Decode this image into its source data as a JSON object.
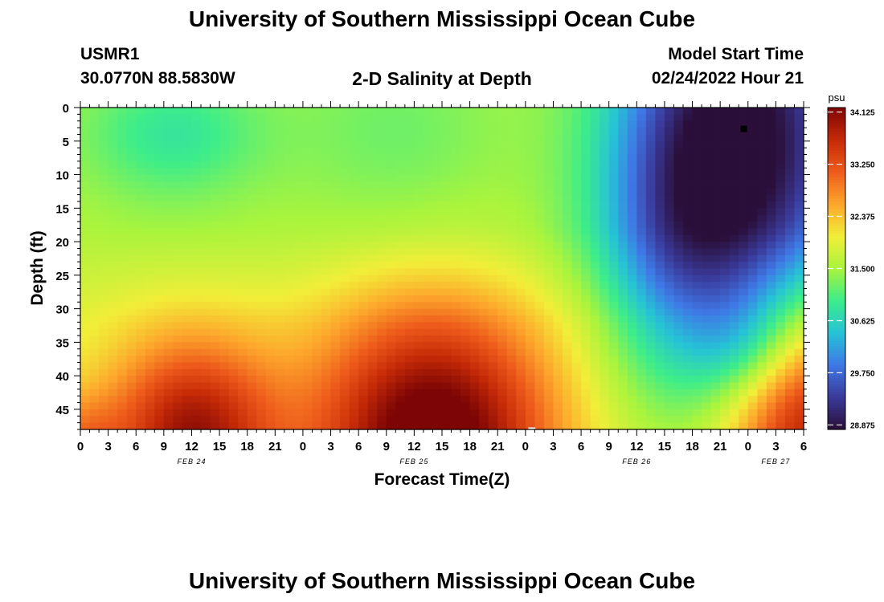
{
  "header": {
    "title": "University of Southern Mississippi Ocean Cube",
    "station": "USMR1",
    "coords": "30.0770N  88.5830W",
    "subtitle": "2-D Salinity at Depth",
    "model_start_label": "Model Start Time",
    "model_start_value": "02/24/2022 Hour 21"
  },
  "footer": {
    "title": "University of Southern Mississippi Ocean Cube"
  },
  "chart_data": {
    "type": "heatmap",
    "title": "2-D Salinity at Depth",
    "xlabel": "Forecast Time(Z)",
    "ylabel": "Depth (ft)",
    "colorbar_unit": "psu",
    "x_ticks": [
      "0",
      "3",
      "6",
      "9",
      "12",
      "15",
      "18",
      "21",
      "0",
      "3",
      "6",
      "9",
      "12",
      "15",
      "18",
      "21",
      "0",
      "3",
      "6",
      "9",
      "12",
      "15",
      "18",
      "21",
      "0",
      "3",
      "6"
    ],
    "x_hours_range": [
      0,
      78
    ],
    "date_labels": [
      {
        "label": "FEB 24",
        "hour": 12
      },
      {
        "label": "FEB 25",
        "hour": 36
      },
      {
        "label": "FEB 26",
        "hour": 60
      },
      {
        "label": "FEB 27",
        "hour": 75
      }
    ],
    "y_ticks": [
      "0",
      "5",
      "10",
      "15",
      "20",
      "25",
      "30",
      "35",
      "40",
      "45"
    ],
    "y_range": [
      0,
      48
    ],
    "y_inverted": true,
    "colorbar_ticks": [
      "34.125",
      "33.250",
      "32.375",
      "31.500",
      "30.625",
      "29.750",
      "28.875"
    ],
    "color_range": [
      28.8,
      34.2
    ],
    "colormap": [
      "#2a0f3a",
      "#3a3a9a",
      "#3f78e6",
      "#26c3d6",
      "#3ded8a",
      "#a9f43d",
      "#f2ee38",
      "#fda62c",
      "#ee5b1b",
      "#c52a07",
      "#7d0505"
    ],
    "grid": false,
    "approx_values": {
      "description_nodes": [
        {
          "hour": 0,
          "depth": 0,
          "psu": 30.9
        },
        {
          "hour": 12,
          "depth": 5,
          "psu": 30.7
        },
        {
          "hour": 12,
          "depth": 45,
          "psu": 33.4
        },
        {
          "hour": 38,
          "depth": 47,
          "psu": 33.9
        },
        {
          "hour": 72,
          "depth": 3,
          "psu": 28.9
        },
        {
          "hour": 78,
          "depth": 45,
          "psu": 33.1
        }
      ]
    }
  }
}
